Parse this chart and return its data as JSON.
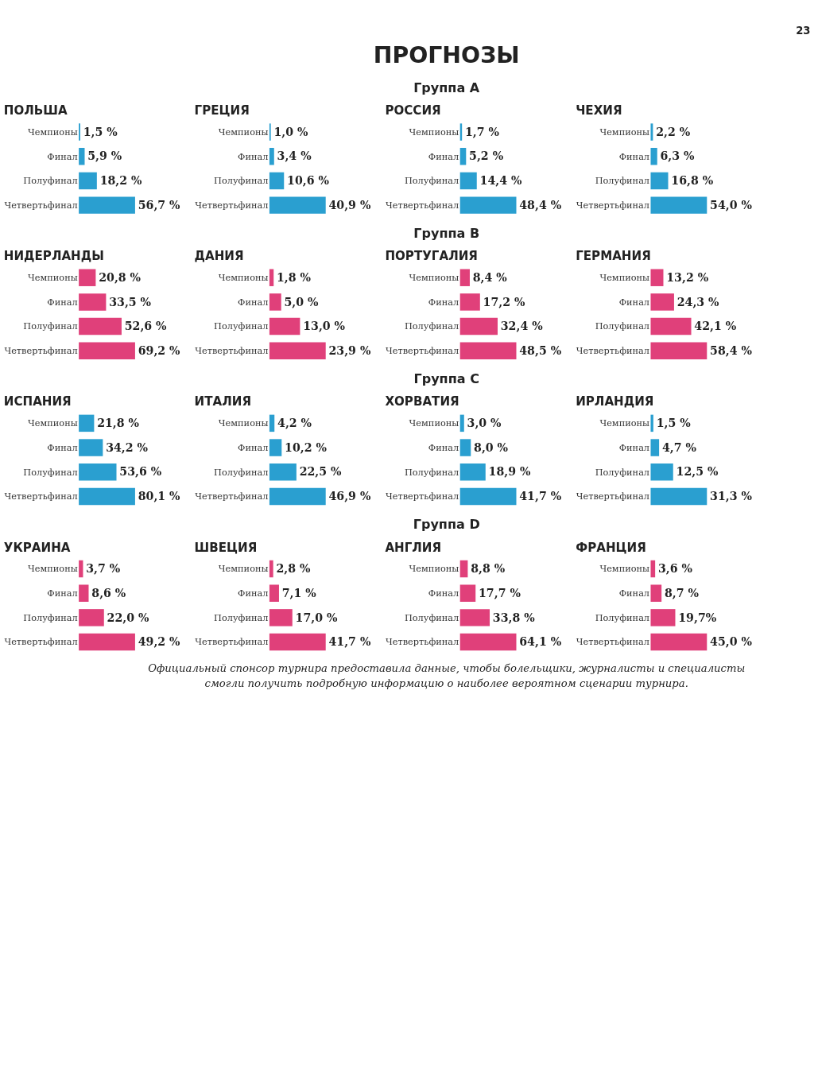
{
  "chart_data": [
    {
      "type": "other",
      "title": "ПРОГНОЗЫ",
      "annotations": [
        "23"
      ]
    },
    {
      "type": "other",
      "title": "Группа A"
    },
    {
      "type": "bar",
      "orientation": "horizontal",
      "title": "ПОЛЬША",
      "categories": [
        "Чемпионы",
        "Финал",
        "Полуфинал",
        "Четвертьфинал"
      ],
      "values": [
        1.5,
        5.9,
        18.2,
        56.7
      ],
      "value_labels": [
        "1,5 %",
        "5,9 %",
        "18,2 %",
        "56,7 %"
      ],
      "color": "#2a9fd0"
    },
    {
      "type": "bar",
      "orientation": "horizontal",
      "title": "ГРЕЦИЯ",
      "categories": [
        "Чемпионы",
        "Финал",
        "Полуфинал",
        "Четвертьфинал"
      ],
      "values": [
        1.0,
        3.4,
        10.6,
        40.9
      ],
      "value_labels": [
        "1,0 %",
        "3,4 %",
        "10,6 %",
        "40,9 %"
      ],
      "color": "#2a9fd0"
    },
    {
      "type": "bar",
      "orientation": "horizontal",
      "title": "РОССИЯ",
      "categories": [
        "Чемпионы",
        "Финал",
        "Полуфинал",
        "Четвертьфинал"
      ],
      "values": [
        1.7,
        5.2,
        14.4,
        48.4
      ],
      "value_labels": [
        "1,7 %",
        "5,2 %",
        "14,4 %",
        "48,4 %"
      ],
      "color": "#2a9fd0"
    },
    {
      "type": "bar",
      "orientation": "horizontal",
      "title": "ЧЕХИЯ",
      "categories": [
        "Чемпионы",
        "Финал",
        "Полуфинал",
        "Четвертьфинал"
      ],
      "values": [
        2.2,
        6.3,
        16.8,
        54.0
      ],
      "value_labels": [
        "2,2 %",
        "6,3 %",
        "16,8 %",
        "54,0 %"
      ],
      "color": "#2a9fd0"
    },
    {
      "type": "other",
      "title": "Группа B"
    },
    {
      "type": "bar",
      "orientation": "horizontal",
      "title": "НИДЕРЛАНДЫ",
      "categories": [
        "Чемпионы",
        "Финал",
        "Полуфинал",
        "Четвертьфинал"
      ],
      "values": [
        20.8,
        33.5,
        52.6,
        69.2
      ],
      "value_labels": [
        "20,8 %",
        "33,5 %",
        "52,6 %",
        "69,2 %"
      ],
      "color": "#e0407a"
    },
    {
      "type": "bar",
      "orientation": "horizontal",
      "title": "ДАНИЯ",
      "categories": [
        "Чемпионы",
        "Финал",
        "Полуфинал",
        "Четвертьфинал"
      ],
      "values": [
        1.8,
        5.0,
        13.0,
        23.9
      ],
      "value_labels": [
        "1,8 %",
        "5,0 %",
        "13,0 %",
        "23,9 %"
      ],
      "color": "#e0407a"
    },
    {
      "type": "bar",
      "orientation": "horizontal",
      "title": "ПОРТУГАЛИЯ",
      "categories": [
        "Чемпионы",
        "Финал",
        "Полуфинал",
        "Четвертьфинал"
      ],
      "values": [
        8.4,
        17.2,
        32.4,
        48.5
      ],
      "value_labels": [
        "8,4 %",
        "17,2 %",
        "32,4 %",
        "48,5 %"
      ],
      "color": "#e0407a"
    },
    {
      "type": "bar",
      "orientation": "horizontal",
      "title": "ГЕРМАНИЯ",
      "categories": [
        "Чемпионы",
        "Финал",
        "Полуфинал",
        "Четвертьфинал"
      ],
      "values": [
        13.2,
        24.3,
        42.1,
        58.4
      ],
      "value_labels": [
        "13,2 %",
        "24,3 %",
        "42,1 %",
        "58,4 %"
      ],
      "color": "#e0407a"
    },
    {
      "type": "other",
      "title": "Группа C"
    },
    {
      "type": "bar",
      "orientation": "horizontal",
      "title": "ИСПАНИЯ",
      "categories": [
        "Чемпионы",
        "Финал",
        "Полуфинал",
        "Четвертьфинал"
      ],
      "values": [
        21.8,
        34.2,
        53.6,
        80.1
      ],
      "value_labels": [
        "21,8 %",
        "34,2 %",
        "53,6 %",
        "80,1 %"
      ],
      "color": "#2a9fd0"
    },
    {
      "type": "bar",
      "orientation": "horizontal",
      "title": "ИТАЛИЯ",
      "categories": [
        "Чемпионы",
        "Финал",
        "Полуфинал",
        "Четвертьфинал"
      ],
      "values": [
        4.2,
        10.2,
        22.5,
        46.9
      ],
      "value_labels": [
        "4,2 %",
        "10,2 %",
        "22,5 %",
        "46,9 %"
      ],
      "color": "#2a9fd0"
    },
    {
      "type": "bar",
      "orientation": "horizontal",
      "title": "ХОРВАТИЯ",
      "categories": [
        "Чемпионы",
        "Финал",
        "Полуфинал",
        "Четвертьфинал"
      ],
      "values": [
        3.0,
        8.0,
        18.9,
        41.7
      ],
      "value_labels": [
        "3,0 %",
        "8,0 %",
        "18,9 %",
        "41,7 %"
      ],
      "color": "#2a9fd0"
    },
    {
      "type": "bar",
      "orientation": "horizontal",
      "title": "ИРЛАНДИЯ",
      "categories": [
        "Чемпионы",
        "Финал",
        "Полуфинал",
        "Четвертьфинал"
      ],
      "values": [
        1.5,
        4.7,
        12.5,
        31.3
      ],
      "value_labels": [
        "1,5 %",
        "4,7 %",
        "12,5 %",
        "31,3 %"
      ],
      "color": "#2a9fd0"
    },
    {
      "type": "other",
      "title": "Группа D"
    },
    {
      "type": "bar",
      "orientation": "horizontal",
      "title": "УКРАИНА",
      "categories": [
        "Чемпионы",
        "Финал",
        "Полуфинал",
        "Четвертьфинал"
      ],
      "values": [
        3.7,
        8.6,
        22.0,
        49.2
      ],
      "value_labels": [
        "3,7 %",
        "8,6 %",
        "22,0 %",
        "49,2 %"
      ],
      "color": "#e0407a"
    },
    {
      "type": "bar",
      "orientation": "horizontal",
      "title": "ШВЕЦИЯ",
      "categories": [
        "Чемпионы",
        "Финал",
        "Полуфинал",
        "Четвертьфинал"
      ],
      "values": [
        2.8,
        7.1,
        17.0,
        41.7
      ],
      "value_labels": [
        "2,8 %",
        "7,1 %",
        "17,0 %",
        "41,7 %"
      ],
      "color": "#e0407a"
    },
    {
      "type": "bar",
      "orientation": "horizontal",
      "title": "АНГЛИЯ",
      "categories": [
        "Чемпионы",
        "Финал",
        "Полуфинал",
        "Четвертьфинал"
      ],
      "values": [
        8.8,
        17.7,
        33.8,
        64.1
      ],
      "value_labels": [
        "8,8 %",
        "17,7 %",
        "33,8 %",
        "64,1 %"
      ],
      "color": "#e0407a"
    },
    {
      "type": "bar",
      "orientation": "horizontal",
      "title": "ФРАНЦИЯ",
      "categories": [
        "Чемпионы",
        "Финал",
        "Полуфинал",
        "Четвертьфинал"
      ],
      "values": [
        3.6,
        8.7,
        19.7,
        45.0
      ],
      "value_labels": [
        "3,6 %",
        "8,7 %",
        "19,7%",
        "45,0 %"
      ],
      "color": "#e0407a"
    },
    {
      "type": "other",
      "annotations": [
        "Официальный спонсор турнира предоставила данные, чтобы болельщики, журналисты и специалисты смогли получить подробную информацию о наиболее вероятном сценарии турнира."
      ]
    }
  ]
}
